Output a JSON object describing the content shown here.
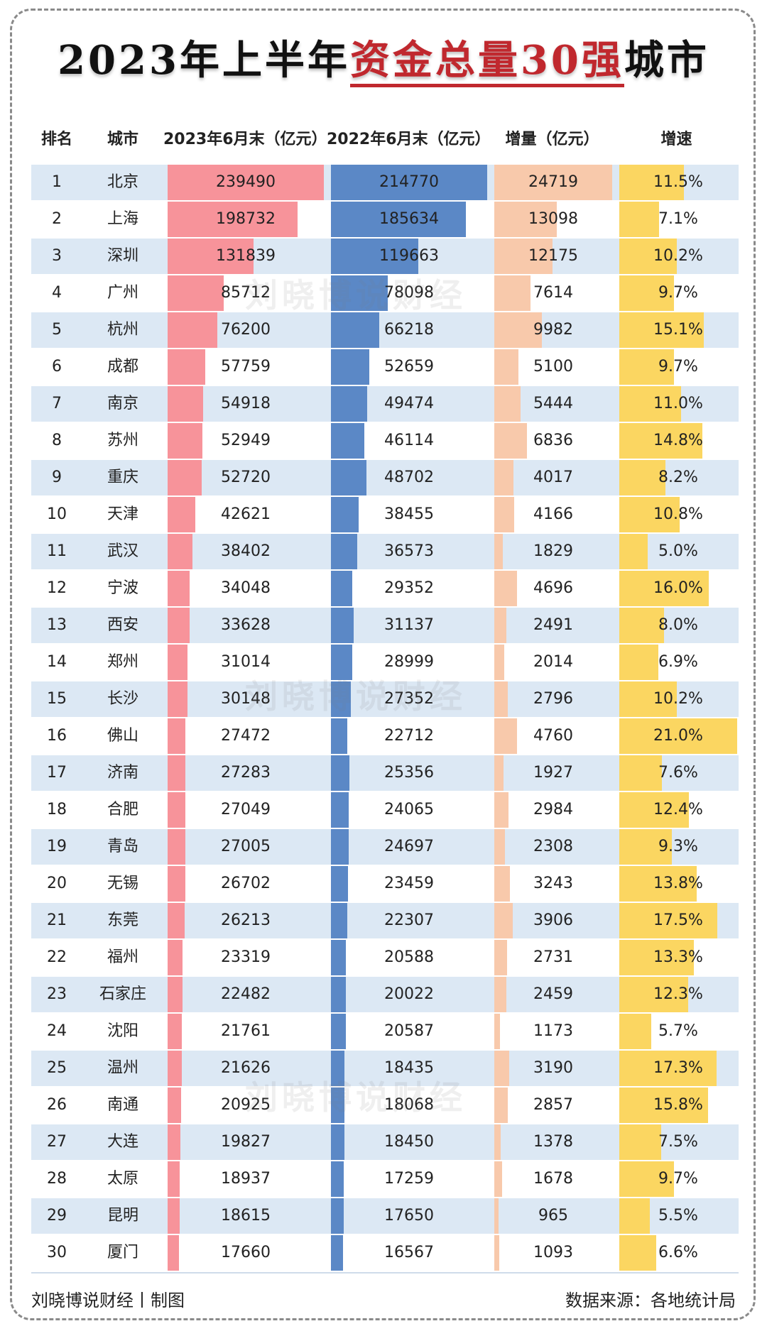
{
  "title_parts": {
    "pre": "2023年上半年",
    "highlight": "资金总量30强",
    "post": "城市"
  },
  "headers": {
    "rank": "排名",
    "city": "城市",
    "col_2023": "2023年6月末（亿元）",
    "col_2022": "2022年6月末（亿元）",
    "increase": "增量（亿元）",
    "growth": "增速"
  },
  "watermark": "刘晓博说财经",
  "footer": {
    "left": "刘晓博说财经丨制图",
    "right": "数据来源：各地统计局"
  },
  "colors": {
    "col_2023": "#f7939a",
    "col_2022": "#5b88c6",
    "increase": "#f8c9ab",
    "growth": "#fbd661",
    "band": "#dce8f4",
    "title_highlight": "#c0282e"
  },
  "chart_data": {
    "type": "table",
    "columns": [
      "排名",
      "城市",
      "2023年6月末（亿元）",
      "2022年6月末（亿元）",
      "增量（亿元）",
      "增速"
    ],
    "rows": [
      {
        "rank": "1",
        "city": "北京",
        "v2023": 239490,
        "v2022": 214770,
        "increase": 24719,
        "growth": "11.5%",
        "growth_pct": 11.5
      },
      {
        "rank": "2",
        "city": "上海",
        "v2023": 198732,
        "v2022": 185634,
        "increase": 13098,
        "growth": "7.1%",
        "growth_pct": 7.1
      },
      {
        "rank": "3",
        "city": "深圳",
        "v2023": 131839,
        "v2022": 119663,
        "increase": 12175,
        "growth": "10.2%",
        "growth_pct": 10.2
      },
      {
        "rank": "4",
        "city": "广州",
        "v2023": 85712,
        "v2022": 78098,
        "increase": 7614,
        "growth": "9.7%",
        "growth_pct": 9.7
      },
      {
        "rank": "5",
        "city": "杭州",
        "v2023": 76200,
        "v2022": 66218,
        "increase": 9982,
        "growth": "15.1%",
        "growth_pct": 15.1
      },
      {
        "rank": "6",
        "city": "成都",
        "v2023": 57759,
        "v2022": 52659,
        "increase": 5100,
        "growth": "9.7%",
        "growth_pct": 9.7
      },
      {
        "rank": "7",
        "city": "南京",
        "v2023": 54918,
        "v2022": 49474,
        "increase": 5444,
        "growth": "11.0%",
        "growth_pct": 11.0
      },
      {
        "rank": "8",
        "city": "苏州",
        "v2023": 52949,
        "v2022": 46114,
        "increase": 6836,
        "growth": "14.8%",
        "growth_pct": 14.8
      },
      {
        "rank": "9",
        "city": "重庆",
        "v2023": 52720,
        "v2022": 48702,
        "increase": 4017,
        "growth": "8.2%",
        "growth_pct": 8.2
      },
      {
        "rank": "10",
        "city": "天津",
        "v2023": 42621,
        "v2022": 38455,
        "increase": 4166,
        "growth": "10.8%",
        "growth_pct": 10.8
      },
      {
        "rank": "11",
        "city": "武汉",
        "v2023": 38402,
        "v2022": 36573,
        "increase": 1829,
        "growth": "5.0%",
        "growth_pct": 5.0
      },
      {
        "rank": "12",
        "city": "宁波",
        "v2023": 34048,
        "v2022": 29352,
        "increase": 4696,
        "growth": "16.0%",
        "growth_pct": 16.0
      },
      {
        "rank": "13",
        "city": "西安",
        "v2023": 33628,
        "v2022": 31137,
        "increase": 2491,
        "growth": "8.0%",
        "growth_pct": 8.0
      },
      {
        "rank": "14",
        "city": "郑州",
        "v2023": 31014,
        "v2022": 28999,
        "increase": 2014,
        "growth": "6.9%",
        "growth_pct": 6.9
      },
      {
        "rank": "15",
        "city": "长沙",
        "v2023": 30148,
        "v2022": 27352,
        "increase": 2796,
        "growth": "10.2%",
        "growth_pct": 10.2
      },
      {
        "rank": "16",
        "city": "佛山",
        "v2023": 27472,
        "v2022": 22712,
        "increase": 4760,
        "growth": "21.0%",
        "growth_pct": 21.0
      },
      {
        "rank": "17",
        "city": "济南",
        "v2023": 27283,
        "v2022": 25356,
        "increase": 1927,
        "growth": "7.6%",
        "growth_pct": 7.6
      },
      {
        "rank": "18",
        "city": "合肥",
        "v2023": 27049,
        "v2022": 24065,
        "increase": 2984,
        "growth": "12.4%",
        "growth_pct": 12.4
      },
      {
        "rank": "19",
        "city": "青岛",
        "v2023": 27005,
        "v2022": 24697,
        "increase": 2308,
        "growth": "9.3%",
        "growth_pct": 9.3
      },
      {
        "rank": "20",
        "city": "无锡",
        "v2023": 26702,
        "v2022": 23459,
        "increase": 3243,
        "growth": "13.8%",
        "growth_pct": 13.8
      },
      {
        "rank": "21",
        "city": "东莞",
        "v2023": 26213,
        "v2022": 22307,
        "increase": 3906,
        "growth": "17.5%",
        "growth_pct": 17.5
      },
      {
        "rank": "22",
        "city": "福州",
        "v2023": 23319,
        "v2022": 20588,
        "increase": 2731,
        "growth": "13.3%",
        "growth_pct": 13.3
      },
      {
        "rank": "23",
        "city": "石家庄",
        "v2023": 22482,
        "v2022": 20022,
        "increase": 2459,
        "growth": "12.3%",
        "growth_pct": 12.3
      },
      {
        "rank": "24",
        "city": "沈阳",
        "v2023": 21761,
        "v2022": 20587,
        "increase": 1173,
        "growth": "5.7%",
        "growth_pct": 5.7
      },
      {
        "rank": "25",
        "city": "温州",
        "v2023": 21626,
        "v2022": 18435,
        "increase": 3190,
        "growth": "17.3%",
        "growth_pct": 17.3
      },
      {
        "rank": "26",
        "city": "南通",
        "v2023": 20925,
        "v2022": 18068,
        "increase": 2857,
        "growth": "15.8%",
        "growth_pct": 15.8
      },
      {
        "rank": "27",
        "city": "大连",
        "v2023": 19827,
        "v2022": 18450,
        "increase": 1378,
        "growth": "7.5%",
        "growth_pct": 7.5
      },
      {
        "rank": "28",
        "city": "太原",
        "v2023": 18937,
        "v2022": 17259,
        "increase": 1678,
        "growth": "9.7%",
        "growth_pct": 9.7
      },
      {
        "rank": "29",
        "city": "昆明",
        "v2023": 18615,
        "v2022": 17650,
        "increase": 965,
        "growth": "5.5%",
        "growth_pct": 5.5
      },
      {
        "rank": "30",
        "city": "厦门",
        "v2023": 17660,
        "v2022": 16567,
        "increase": 1093,
        "growth": "6.6%",
        "growth_pct": 6.6
      }
    ]
  }
}
